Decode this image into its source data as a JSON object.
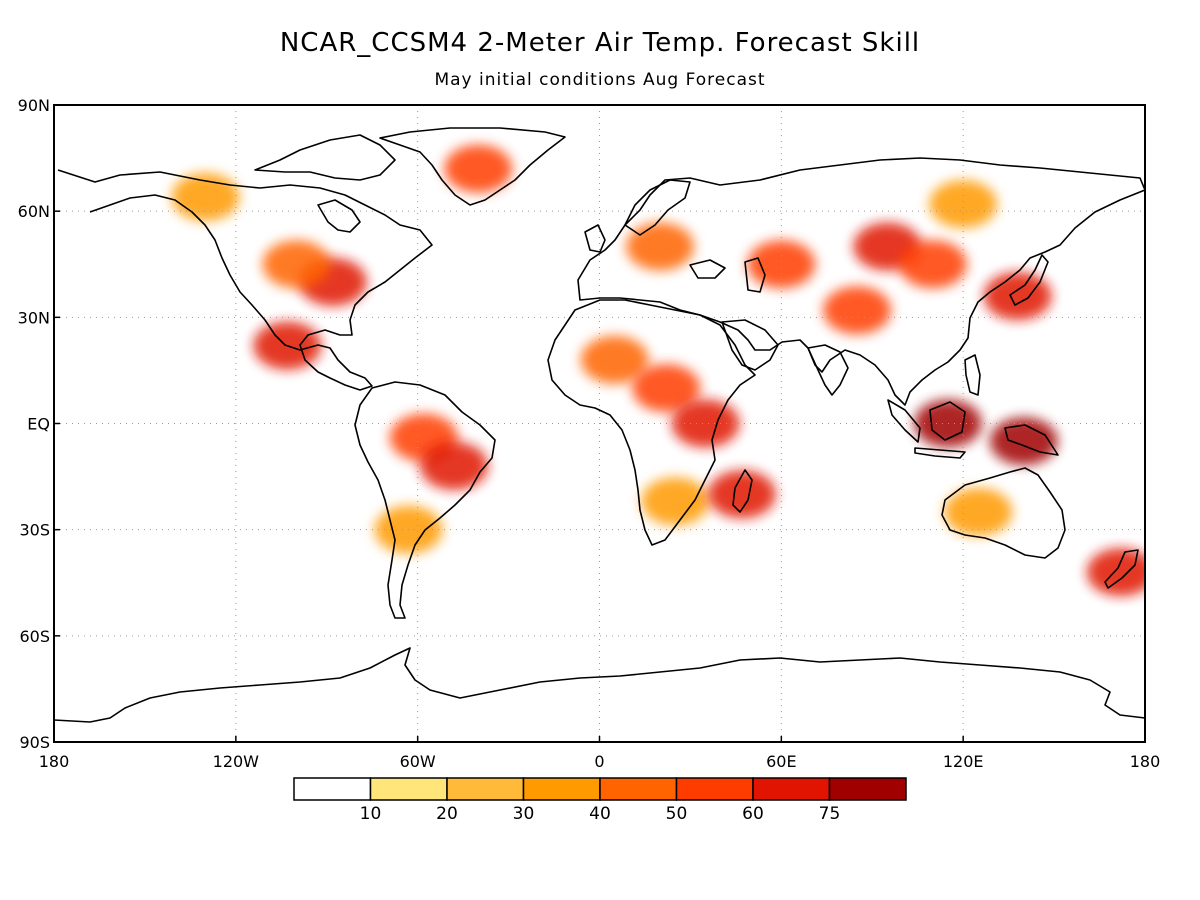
{
  "title": "NCAR_CCSM4 2-Meter Air Temp. Forecast Skill",
  "subtitle": "May initial conditions  Aug Forecast",
  "map": {
    "projection": "equirectangular",
    "lon_range": [
      -180,
      180
    ],
    "lat_range": [
      -90,
      90
    ],
    "grid": true,
    "lat_ticks": [
      {
        "value": 90,
        "label": "90N"
      },
      {
        "value": 60,
        "label": "60N"
      },
      {
        "value": 30,
        "label": "30N"
      },
      {
        "value": 0,
        "label": "EQ"
      },
      {
        "value": -30,
        "label": "30S"
      },
      {
        "value": -60,
        "label": "60S"
      },
      {
        "value": -90,
        "label": "90S"
      }
    ],
    "lon_ticks": [
      {
        "value": -180,
        "label": "180"
      },
      {
        "value": -120,
        "label": "120W"
      },
      {
        "value": -60,
        "label": "60W"
      },
      {
        "value": 0,
        "label": "0"
      },
      {
        "value": 60,
        "label": "60E"
      },
      {
        "value": 120,
        "label": "120E"
      },
      {
        "value": 180,
        "label": "180"
      }
    ],
    "skill_regions": [
      {
        "lon": -88,
        "lat": 40,
        "level": 50
      },
      {
        "lon": -100,
        "lat": 45,
        "level": 30
      },
      {
        "lon": -130,
        "lat": 64,
        "level": 20
      },
      {
        "lon": -103,
        "lat": 22,
        "level": 50
      },
      {
        "lon": 320,
        "lat": 72,
        "level": 40
      },
      {
        "lon": -58,
        "lat": -4,
        "level": 40
      },
      {
        "lon": -48,
        "lat": -12,
        "level": 50
      },
      {
        "lon": -63,
        "lat": -30,
        "level": 20
      },
      {
        "lon": 5,
        "lat": 18,
        "level": 30
      },
      {
        "lon": 22,
        "lat": 10,
        "level": 40
      },
      {
        "lon": 35,
        "lat": 0,
        "level": 50
      },
      {
        "lon": 25,
        "lat": -22,
        "level": 20
      },
      {
        "lon": 47,
        "lat": -20,
        "level": 50
      },
      {
        "lon": 20,
        "lat": 50,
        "level": 30
      },
      {
        "lon": 60,
        "lat": 45,
        "level": 40
      },
      {
        "lon": 95,
        "lat": 50,
        "level": 50
      },
      {
        "lon": 110,
        "lat": 45,
        "level": 40
      },
      {
        "lon": 85,
        "lat": 32,
        "level": 40
      },
      {
        "lon": 115,
        "lat": 0,
        "level": 60
      },
      {
        "lon": 140,
        "lat": -5,
        "level": 60
      },
      {
        "lon": 138,
        "lat": 36,
        "level": 50
      },
      {
        "lon": 125,
        "lat": -25,
        "level": 20
      },
      {
        "lon": 172,
        "lat": -42,
        "level": 50
      },
      {
        "lon": 120,
        "lat": 62,
        "level": 20
      }
    ]
  },
  "colorbar": {
    "colors": [
      "#ffffff",
      "#ffe57a",
      "#ffba3a",
      "#ff9a00",
      "#ff6400",
      "#ff3c00",
      "#e01400",
      "#a00000"
    ],
    "labels": [
      "10",
      "20",
      "30",
      "40",
      "50",
      "60",
      "75"
    ]
  }
}
